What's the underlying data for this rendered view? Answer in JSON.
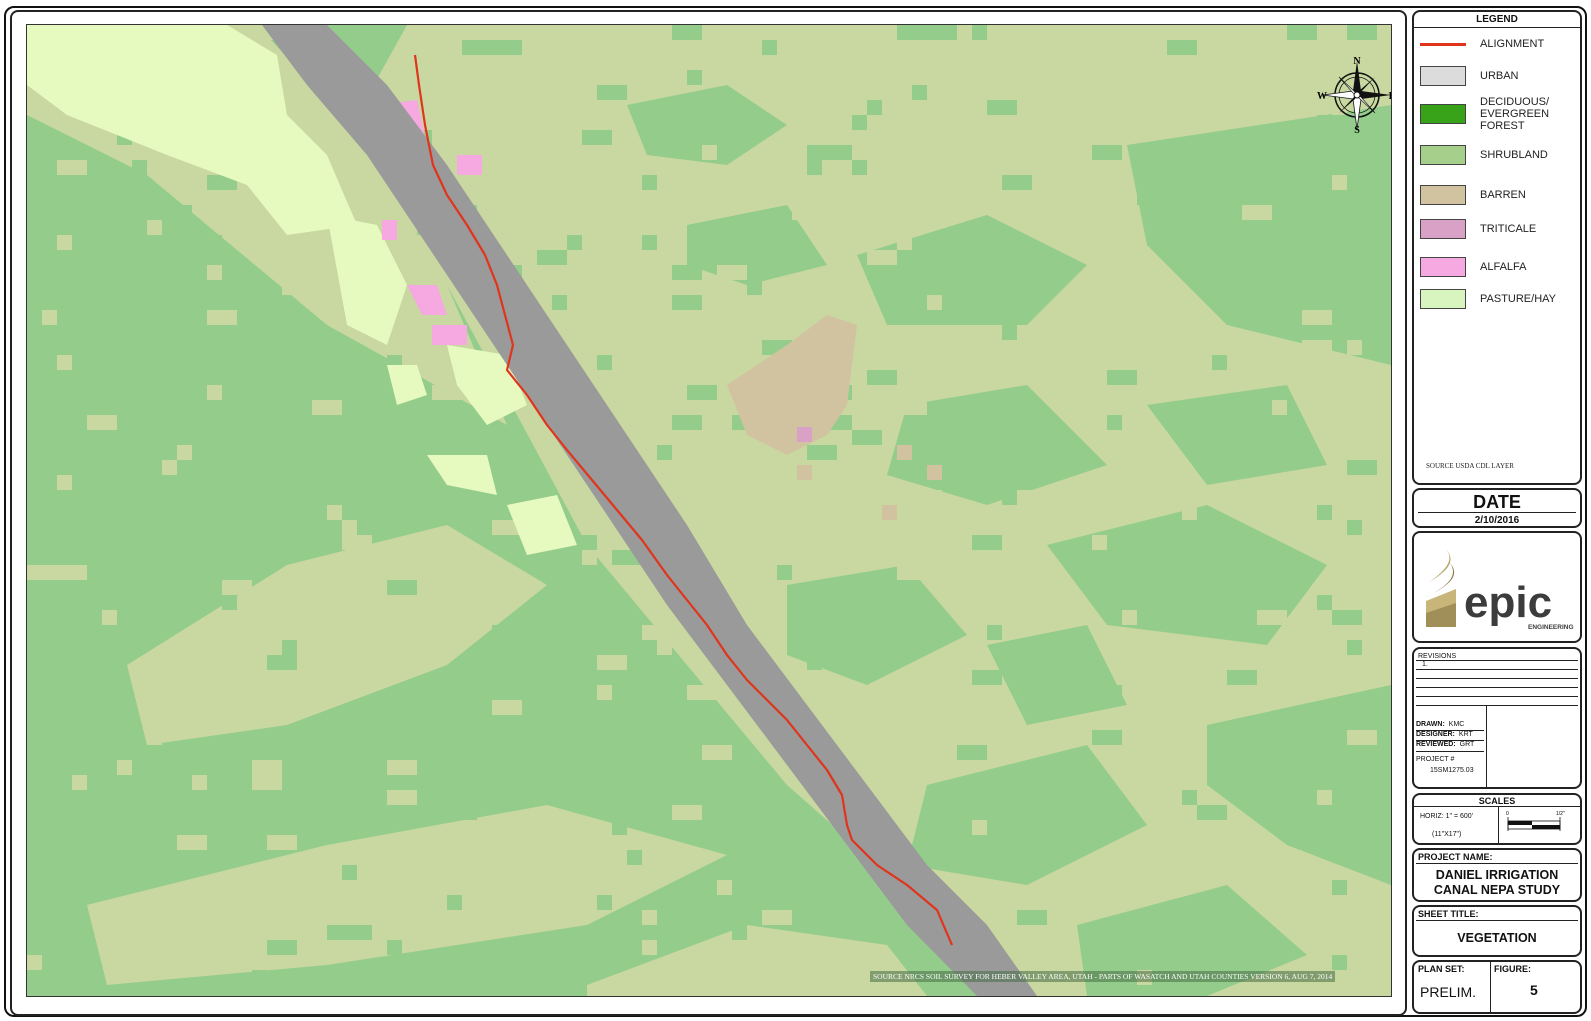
{
  "map": {
    "colors": {
      "base_shrub": "#94cc8c",
      "grass": "#c9d8a0",
      "canal": "#9a9a9a",
      "pasture": "#e6f9bf",
      "alfalfa": "#f5a9e0",
      "barren": "#d2c3a0",
      "triticale": "#d9a1c6",
      "alignment": "#e0341c"
    },
    "compass": {
      "n": "N",
      "s": "S",
      "e": "E",
      "w": "W",
      "icon": "compass-rose-icon"
    },
    "source_note": "SOURCE NRCS SOIL SURVEY FOR HEBER VALLEY AREA, UTAH - PARTS OF WASATCH AND UTAH COUNTIES VERSION 6, AUG 7, 2014"
  },
  "legend": {
    "title": "LEGEND",
    "items": [
      {
        "label": "ALIGNMENT",
        "color": "#e0341c",
        "kind": "line"
      },
      {
        "label": "URBAN",
        "color": "#dcdcdc",
        "kind": "box"
      },
      {
        "label": "DECIDUOUS/ EVERGREEN FOREST",
        "color": "#38a318",
        "kind": "box"
      },
      {
        "label": "SHRUBLAND",
        "color": "#a7cf8c",
        "kind": "box"
      },
      {
        "label": "BARREN",
        "color": "#d2c3a0",
        "kind": "box"
      },
      {
        "label": "TRITICALE",
        "color": "#d9a1c6",
        "kind": "box"
      },
      {
        "label": "ALFALFA",
        "color": "#f5a9e0",
        "kind": "box"
      },
      {
        "label": "PASTURE/HAY",
        "color": "#d8f5c0",
        "kind": "box"
      }
    ],
    "source": "SOURCE USDA CDL LAYER"
  },
  "date": {
    "title": "DATE",
    "value": "2/10/2016"
  },
  "logo": {
    "text": "epic",
    "sub": "ENGINEERING",
    "icon": "epic-flame-logo-icon"
  },
  "revisions": {
    "title": "REVISIONS",
    "first": "1."
  },
  "drawn": {
    "label": "DRAWN:",
    "value": "KMC"
  },
  "designer": {
    "label": "DESIGNER:",
    "value": "KRT"
  },
  "reviewed": {
    "label": "REVIEWED:",
    "value": "GRT"
  },
  "project": {
    "label": "PROJECT #",
    "value": "15SM1275.03"
  },
  "scales": {
    "title": "SCALES",
    "horiz": "HORIZ: 1\" = 600'",
    "paper": "(11\"X17\")",
    "bar_start": "0",
    "bar_end": "1/2\""
  },
  "project_name": {
    "label": "PROJECT NAME:",
    "line1": "DANIEL IRRIGATION",
    "line2": "CANAL NEPA STUDY"
  },
  "sheet_title": {
    "label": "SHEET TITLE:",
    "value": "VEGETATION"
  },
  "plan_set": {
    "label": "PLAN SET:",
    "value": "PRELIM."
  },
  "figure": {
    "label": "FIGURE:",
    "value": "5"
  }
}
